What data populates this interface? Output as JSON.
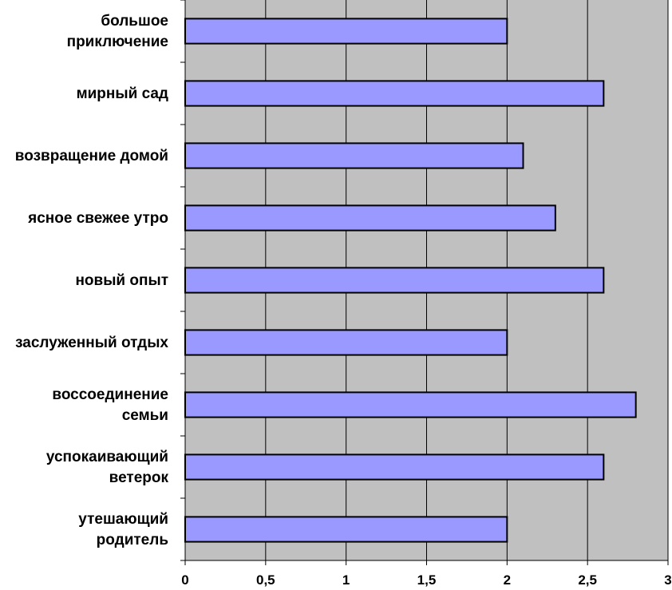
{
  "chart_data": {
    "type": "bar",
    "orientation": "horizontal",
    "categories": [
      [
        "большое",
        "приключение"
      ],
      [
        "мирный сад"
      ],
      [
        "возвращение домой"
      ],
      [
        "ясное свежее утро"
      ],
      [
        "новый опыт"
      ],
      [
        "заслуженный отдых"
      ],
      [
        "воссоединение",
        "семьи"
      ],
      [
        "успокаивающий",
        "ветерок"
      ],
      [
        "утешающий",
        "родитель"
      ]
    ],
    "values": [
      2,
      2.6,
      2.1,
      2.3,
      2.6,
      2,
      2.8,
      2.6,
      2
    ],
    "xlim": [
      0,
      3
    ],
    "xticks": [
      0,
      0.5,
      1,
      1.5,
      2,
      2.5,
      3
    ],
    "xtick_labels": [
      "0",
      "0,5",
      "1",
      "1,5",
      "2",
      "2,5",
      "3"
    ],
    "title": "",
    "xlabel": "",
    "ylabel": "",
    "grid": "vertical",
    "legend": "none",
    "colors": {
      "bar_fill": "#9999ff",
      "bar_stroke": "#000000",
      "plot_background": "#c0c0c0",
      "gridline": "#000000"
    }
  }
}
